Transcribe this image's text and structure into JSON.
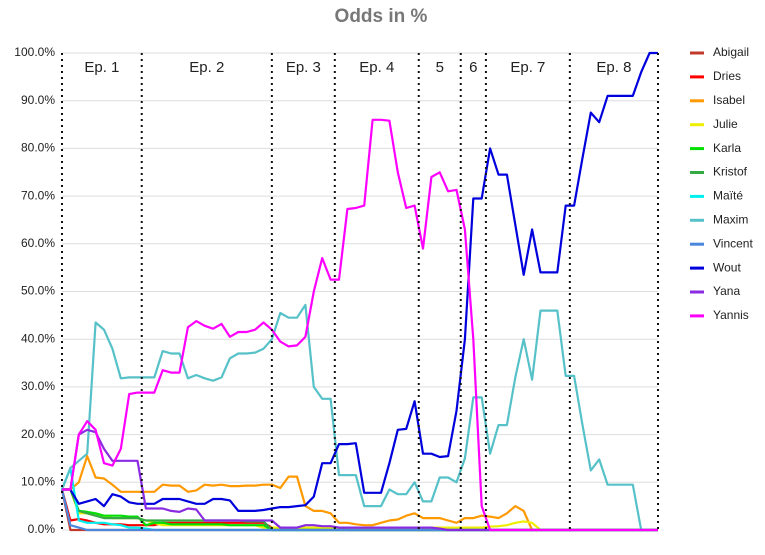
{
  "chart_data": {
    "type": "line",
    "title": "Odds in %",
    "categories": [
      null,
      null,
      null,
      null,
      null,
      null,
      null,
      null,
      null,
      null,
      null,
      null,
      null,
      null,
      null,
      null,
      null,
      null,
      null,
      null,
      null,
      null,
      null,
      null,
      null,
      null,
      null,
      null,
      null,
      null,
      null,
      null,
      null,
      null,
      null,
      null,
      null,
      null,
      null,
      null,
      null,
      null,
      null,
      null,
      null,
      null,
      null,
      null,
      null,
      null,
      null,
      null,
      null,
      null,
      null,
      null,
      null,
      null,
      null,
      null,
      null,
      null,
      null,
      null,
      null,
      null,
      null,
      null,
      null,
      null,
      null,
      null
    ],
    "ylim": [
      0,
      100
    ],
    "yticks": [
      {
        "value": 0,
        "label": "0.0%"
      },
      {
        "value": 10,
        "label": "10.0%"
      },
      {
        "value": 20,
        "label": "20.0%"
      },
      {
        "value": 30,
        "label": "30.0%"
      },
      {
        "value": 40,
        "label": "40.0%"
      },
      {
        "value": 50,
        "label": "50.0%"
      },
      {
        "value": 60,
        "label": "60.0%"
      },
      {
        "value": 70,
        "label": "70.0%"
      },
      {
        "value": 80,
        "label": "80.0%"
      },
      {
        "value": 90,
        "label": "90.0%"
      },
      {
        "value": 100,
        "label": "100.0%"
      }
    ],
    "grid": true,
    "legend": "right",
    "episodes": [
      {
        "label": "Ep. 1",
        "start": 0,
        "end": 9.5
      },
      {
        "label": "Ep. 2",
        "start": 9.5,
        "end": 25
      },
      {
        "label": "Ep. 3",
        "start": 25,
        "end": 32.5
      },
      {
        "label": "Ep. 4",
        "start": 32.5,
        "end": 42.5
      },
      {
        "label": "5",
        "start": 42.5,
        "end": 47.5
      },
      {
        "label": "6",
        "start": 47.5,
        "end": 50.5
      },
      {
        "label": "Ep. 7",
        "start": 50.5,
        "end": 60.5
      },
      {
        "label": "Ep. 8",
        "start": 60.5,
        "end": 71
      }
    ],
    "series": [
      {
        "name": "Abigail",
        "color": "#c0392b",
        "values": [
          8.5,
          0,
          0,
          0,
          0,
          0,
          0,
          0,
          0,
          0,
          0,
          0,
          0,
          0,
          0,
          0,
          0,
          0,
          0,
          0,
          0,
          0,
          0,
          0,
          0,
          0,
          0,
          0,
          0,
          0,
          0,
          0,
          0,
          0,
          0,
          0,
          0,
          0,
          0,
          0,
          0,
          0,
          0,
          0,
          0,
          0,
          0,
          0,
          0,
          0,
          0,
          0,
          0,
          0,
          0,
          0,
          0,
          0,
          0,
          0,
          0,
          0,
          0,
          0,
          0,
          0,
          0,
          0,
          0,
          0,
          0,
          0
        ]
      },
      {
        "name": "Dries",
        "color": "#ff0000",
        "values": [
          8.5,
          2,
          2.3,
          2,
          1.5,
          1.2,
          1.2,
          1.2,
          1,
          1,
          1,
          1,
          1.5,
          1.5,
          1.5,
          1.5,
          1.5,
          1.5,
          1.5,
          1.5,
          1.5,
          1.5,
          1.5,
          1.5,
          1.5,
          0.5,
          0.5,
          0.5,
          0.5,
          0.5,
          0.5,
          0.5,
          0.5,
          0.5,
          0,
          0,
          0,
          0,
          0,
          0,
          0,
          0,
          0,
          0,
          0,
          0,
          0,
          0,
          0,
          0,
          0,
          0,
          0,
          0,
          0,
          0,
          0,
          0,
          0,
          0,
          0,
          0,
          0,
          0,
          0,
          0,
          0,
          0,
          0,
          0,
          0,
          0
        ]
      },
      {
        "name": "Isabel",
        "color": "#ff9900",
        "values": [
          8.5,
          8.5,
          10,
          15.5,
          11,
          10.8,
          9.5,
          8,
          8,
          8,
          8,
          8,
          9.5,
          9.3,
          9.3,
          8,
          8.3,
          9.5,
          9.3,
          9.5,
          9.2,
          9.2,
          9.3,
          9.3,
          9.5,
          9.5,
          8.8,
          11.2,
          11.2,
          5,
          4,
          4,
          3.5,
          1.5,
          1.5,
          1.2,
          1,
          1,
          1.5,
          2,
          2.2,
          3,
          3.5,
          2.5,
          2.5,
          2.5,
          2,
          1.5,
          2.5,
          2.5,
          3,
          2.8,
          2.5,
          3.5,
          5,
          4,
          0,
          0,
          0,
          0,
          0,
          0,
          0,
          0,
          0,
          0,
          0,
          0,
          0,
          0,
          0,
          0
        ]
      },
      {
        "name": "Julie",
        "color": "#eeee00",
        "values": [
          8.5,
          8.5,
          3.5,
          3.5,
          3,
          3,
          2.5,
          2.5,
          2.5,
          2.5,
          2,
          1.5,
          1,
          1,
          1,
          1,
          1,
          1,
          1,
          1,
          1,
          1,
          1,
          1,
          0.5,
          0.5,
          0.5,
          0.5,
          0.5,
          0.5,
          0.5,
          0.5,
          0.5,
          0.5,
          0.5,
          0.5,
          0.5,
          0.5,
          0.5,
          0.5,
          0.5,
          0.5,
          0.5,
          0.5,
          0.5,
          0.5,
          0.5,
          0.5,
          0.5,
          0.5,
          0.5,
          0.7,
          0.8,
          1,
          1.5,
          1.8,
          1.5,
          0,
          0,
          0,
          0,
          0,
          0,
          0,
          0,
          0,
          0,
          0,
          0,
          0,
          0,
          0
        ]
      },
      {
        "name": "Karla",
        "color": "#00e000",
        "values": [
          8.5,
          8.5,
          4,
          3.8,
          3.5,
          3,
          3,
          3,
          2.8,
          2.8,
          1,
          1.5,
          1.5,
          1.2,
          1.2,
          1.2,
          1.2,
          1.2,
          1.2,
          1.2,
          1,
          1,
          1,
          1,
          1,
          0,
          0,
          0,
          0,
          0,
          0,
          0,
          0,
          0,
          0,
          0,
          0,
          0,
          0,
          0,
          0,
          0,
          0,
          0,
          0,
          0,
          0,
          0,
          0,
          0,
          0,
          0,
          0,
          0,
          0,
          0,
          0,
          0,
          0,
          0,
          0,
          0,
          0,
          0,
          0,
          0,
          0,
          0,
          0,
          0,
          0,
          0
        ]
      },
      {
        "name": "Kristof",
        "color": "#33aa44",
        "values": [
          8.5,
          8.5,
          4,
          3.5,
          3,
          2.5,
          2.5,
          2.5,
          2.5,
          2.5,
          2,
          2,
          2,
          2,
          2,
          2,
          2,
          2,
          2,
          2,
          2,
          2,
          1.8,
          1.8,
          1.8,
          0,
          0,
          0,
          0,
          0,
          0,
          0,
          0,
          0,
          0,
          0,
          0,
          0,
          0,
          0,
          0,
          0,
          0,
          0,
          0,
          0,
          0,
          0,
          0,
          0,
          0,
          0,
          0,
          0,
          0,
          0,
          0,
          0,
          0,
          0,
          0,
          0,
          0,
          0,
          0,
          0,
          0,
          0,
          0,
          0,
          0,
          0
        ]
      },
      {
        "name": "Maïté",
        "color": "#00f0f0",
        "values": [
          8.5,
          13,
          2,
          1.5,
          1.5,
          1.5,
          1.2,
          1,
          0.5,
          0.5,
          0.3,
          0,
          0,
          0,
          0,
          0,
          0,
          0,
          0,
          0,
          0,
          0,
          0,
          0,
          0,
          0,
          0,
          0,
          0,
          0,
          0,
          0,
          0,
          0,
          0,
          0,
          0,
          0,
          0,
          0,
          0,
          0,
          0,
          0,
          0,
          0,
          0,
          0,
          0,
          0,
          0,
          0,
          0,
          0,
          0,
          0,
          0,
          0,
          0,
          0,
          0,
          0,
          0,
          0,
          0,
          0,
          0,
          0,
          0,
          0,
          0,
          0
        ]
      },
      {
        "name": "Maxim",
        "color": "#56c1c8",
        "values": [
          8.5,
          13,
          14.5,
          16,
          43.5,
          42,
          38,
          31.8,
          32,
          32,
          32,
          32,
          37.5,
          37,
          37,
          31.8,
          32.5,
          31.8,
          31.3,
          32,
          36,
          37,
          37,
          37.2,
          38,
          40,
          45.5,
          44.5,
          44.5,
          47.2,
          30,
          27.5,
          27.5,
          11.5,
          11.5,
          11.5,
          5,
          5,
          5,
          8.5,
          7.5,
          7.5,
          10,
          6,
          6,
          11,
          11,
          10,
          15,
          27.8,
          27.8,
          16,
          22,
          22,
          32,
          40,
          31.5,
          46,
          46,
          46,
          32.3,
          32.3,
          22,
          12.5,
          14.8,
          9.5,
          9.5,
          9.5,
          9.5,
          0,
          0,
          0
        ]
      },
      {
        "name": "Vincent",
        "color": "#4a88dd",
        "values": [
          8.5,
          1,
          0.5,
          0,
          0,
          0,
          0,
          0,
          0,
          0,
          0,
          0,
          0,
          0,
          0,
          0,
          0,
          0,
          0,
          0,
          0,
          0,
          0,
          0,
          0,
          0,
          0,
          0,
          0,
          0,
          0,
          0,
          0,
          0,
          0,
          0,
          0,
          0,
          0,
          0,
          0,
          0,
          0,
          0,
          0,
          0,
          0,
          0,
          0,
          0,
          0,
          0,
          0,
          0,
          0,
          0,
          0,
          0,
          0,
          0,
          0,
          0,
          0,
          0,
          0,
          0,
          0,
          0,
          0,
          0,
          0,
          0
        ]
      },
      {
        "name": "Wout",
        "color": "#0000dd",
        "values": [
          8.5,
          8.5,
          5.5,
          6,
          6.5,
          5,
          7.5,
          7,
          5.8,
          5.5,
          5.5,
          5.5,
          6.5,
          6.5,
          6.5,
          6,
          5.5,
          5.5,
          6.5,
          6.5,
          6.2,
          4,
          4,
          4,
          4.2,
          4.5,
          4.8,
          4.8,
          5,
          5.2,
          7,
          14,
          14,
          18,
          18,
          18.2,
          7.8,
          7.8,
          7.8,
          14,
          21,
          21.2,
          27,
          16,
          16,
          15.3,
          15.5,
          25,
          40,
          69.5,
          69.5,
          80,
          74.5,
          74.5,
          64,
          53.5,
          63,
          54,
          54,
          54,
          68,
          68,
          78,
          87.5,
          85.5,
          91,
          91,
          91,
          91,
          96,
          100,
          100
        ]
      },
      {
        "name": "Yana",
        "color": "#8a2be2",
        "values": [
          8.5,
          8.5,
          20,
          21,
          20.5,
          17,
          14.5,
          14.5,
          14.5,
          14.5,
          4.5,
          4.5,
          4.5,
          4,
          3.8,
          4.5,
          4.3,
          2,
          2,
          2,
          2,
          2,
          2,
          2,
          2,
          2,
          0.5,
          0.5,
          0.5,
          1,
          1,
          0.8,
          0.8,
          0.5,
          0.5,
          0.5,
          0.5,
          0.5,
          0.5,
          0.5,
          0.5,
          0.5,
          0.5,
          0.5,
          0.5,
          0.3,
          0,
          0,
          0,
          0,
          0,
          0,
          0,
          0,
          0,
          0,
          0,
          0,
          0,
          0,
          0,
          0,
          0,
          0,
          0,
          0,
          0,
          0,
          0,
          0,
          0,
          0
        ]
      },
      {
        "name": "Yannis",
        "color": "#ff00ff",
        "values": [
          8.5,
          8.5,
          20,
          22.8,
          21,
          14,
          13.5,
          17,
          28.5,
          28.8,
          28.8,
          28.8,
          33.5,
          33,
          33,
          42.5,
          43.8,
          42.8,
          42.2,
          43.2,
          40.5,
          41.5,
          41.5,
          42,
          43.5,
          42,
          39.5,
          38.5,
          38.7,
          40.5,
          50,
          57,
          52.5,
          52.5,
          67.3,
          67.5,
          68,
          86,
          86,
          85.8,
          75,
          67.5,
          68,
          59,
          74,
          75,
          71,
          71.3,
          63,
          40,
          5,
          0,
          0,
          0,
          0,
          0,
          0,
          0,
          0,
          0,
          0,
          0,
          0,
          0,
          0,
          0,
          0,
          0,
          0,
          0,
          0,
          0
        ]
      }
    ]
  }
}
